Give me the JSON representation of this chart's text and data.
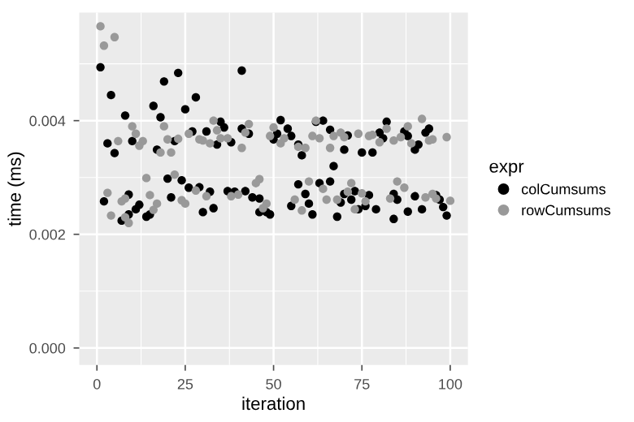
{
  "chart_data": {
    "type": "scatter",
    "xlabel": "iteration",
    "ylabel": "time (ms)",
    "legend_title": "expr",
    "legend": "right",
    "grid": true,
    "marker": "circle",
    "xlim": [
      -5,
      105
    ],
    "xticks": [
      0,
      25,
      50,
      75,
      100
    ],
    "ylim": [
      -0.0003,
      0.0059
    ],
    "yticks": [
      {
        "value": 0,
        "label": "0.000"
      },
      {
        "value": 0.002,
        "label": "0.002"
      },
      {
        "value": 0.004,
        "label": "0.004"
      }
    ],
    "series": [
      {
        "name": "colCumsums",
        "color": "#000000",
        "x": [
          1,
          4,
          8,
          3,
          5,
          10,
          19,
          23,
          16,
          25,
          28,
          18,
          17,
          22,
          27,
          31,
          20,
          24,
          9,
          2,
          21,
          26,
          29,
          32,
          12,
          11,
          15,
          14,
          9,
          7,
          30,
          33,
          41,
          35,
          36,
          34,
          38,
          41,
          43,
          52,
          54,
          51,
          50,
          55,
          57,
          58,
          62,
          64,
          66,
          71,
          70,
          67,
          37,
          39,
          42,
          44,
          46,
          48,
          49,
          46,
          57,
          59,
          55,
          60,
          61,
          63,
          66,
          69,
          68,
          75,
          78,
          80,
          81,
          82,
          87,
          88,
          90,
          91,
          93,
          94,
          70,
          73,
          72,
          74,
          76,
          77,
          79,
          84,
          85,
          84,
          88,
          90,
          92,
          96,
          97,
          98,
          99
        ],
        "values": [
          0.00494,
          0.00445,
          0.00409,
          0.0036,
          0.00343,
          0.00364,
          0.00469,
          0.00484,
          0.00426,
          0.0042,
          0.00441,
          0.00406,
          0.00349,
          0.00364,
          0.00381,
          0.00381,
          0.00298,
          0.00295,
          0.0027,
          0.00258,
          0.00265,
          0.00282,
          0.00283,
          0.00275,
          0.00252,
          0.00244,
          0.00235,
          0.00231,
          0.00235,
          0.00224,
          0.00239,
          0.00246,
          0.00488,
          0.00398,
          0.00388,
          0.00358,
          0.00362,
          0.00386,
          0.00377,
          0.00401,
          0.00386,
          0.00377,
          0.00367,
          0.00373,
          0.00358,
          0.00339,
          0.00398,
          0.004,
          0.00384,
          0.00374,
          0.00349,
          0.0032,
          0.00276,
          0.00275,
          0.00276,
          0.00265,
          0.00263,
          0.00239,
          0.00235,
          0.00239,
          0.00288,
          0.00271,
          0.0025,
          0.00254,
          0.00235,
          0.0029,
          0.00293,
          0.00256,
          0.00231,
          0.00344,
          0.00344,
          0.00379,
          0.00369,
          0.00398,
          0.00381,
          0.00373,
          0.00349,
          0.00358,
          0.00379,
          0.00386,
          0.00271,
          0.00276,
          0.00261,
          0.00244,
          0.0025,
          0.00269,
          0.00244,
          0.00271,
          0.00261,
          0.00227,
          0.0024,
          0.00267,
          0.00244,
          0.00269,
          0.00261,
          0.00248,
          0.00233
        ]
      },
      {
        "name": "rowCumsums",
        "color": "#999999",
        "x": [
          1,
          5,
          2,
          6,
          10,
          11,
          13,
          12,
          19,
          20,
          18,
          21,
          23,
          26,
          29,
          30,
          33,
          32,
          14,
          22,
          3,
          8,
          7,
          15,
          24,
          25,
          28,
          31,
          17,
          16,
          4,
          8,
          9,
          34,
          37,
          35,
          41,
          43,
          42,
          50,
          49,
          53,
          52,
          57,
          59,
          61,
          63,
          62,
          67,
          69,
          70,
          66,
          46,
          45,
          38,
          40,
          48,
          47,
          60,
          56,
          58,
          64,
          65,
          68,
          71,
          72,
          74,
          77,
          78,
          80,
          82,
          84,
          86,
          88,
          89,
          92,
          94,
          95,
          99,
          75,
          73,
          76,
          83,
          85,
          87,
          93,
          95,
          96,
          100
        ],
        "values": [
          0.00566,
          0.00547,
          0.00532,
          0.00364,
          0.0039,
          0.00377,
          0.00364,
          0.00356,
          0.0039,
          0.00367,
          0.00344,
          0.00344,
          0.00368,
          0.00377,
          0.00367,
          0.00365,
          0.004,
          0.0036,
          0.00299,
          0.00305,
          0.00273,
          0.00263,
          0.00258,
          0.00269,
          0.0026,
          0.00254,
          0.00277,
          0.00267,
          0.00254,
          0.00243,
          0.00233,
          0.0023,
          0.0022,
          0.00383,
          0.00369,
          0.00369,
          0.00352,
          0.00394,
          0.00379,
          0.00388,
          0.00373,
          0.00369,
          0.0036,
          0.00354,
          0.00352,
          0.00373,
          0.00369,
          0.004,
          0.00373,
          0.00379,
          0.00371,
          0.00352,
          0.00297,
          0.0029,
          0.00267,
          0.0027,
          0.00254,
          0.00246,
          0.00293,
          0.00261,
          0.00242,
          0.0028,
          0.00261,
          0.00261,
          0.00275,
          0.0029,
          0.00377,
          0.00373,
          0.00375,
          0.00362,
          0.00386,
          0.00365,
          0.00371,
          0.0039,
          0.0036,
          0.00403,
          0.00365,
          0.00367,
          0.00371,
          0.00272,
          0.00244,
          0.00258,
          0.00263,
          0.00293,
          0.00282,
          0.00265,
          0.00271,
          0.00263,
          0.00259
        ]
      }
    ]
  }
}
